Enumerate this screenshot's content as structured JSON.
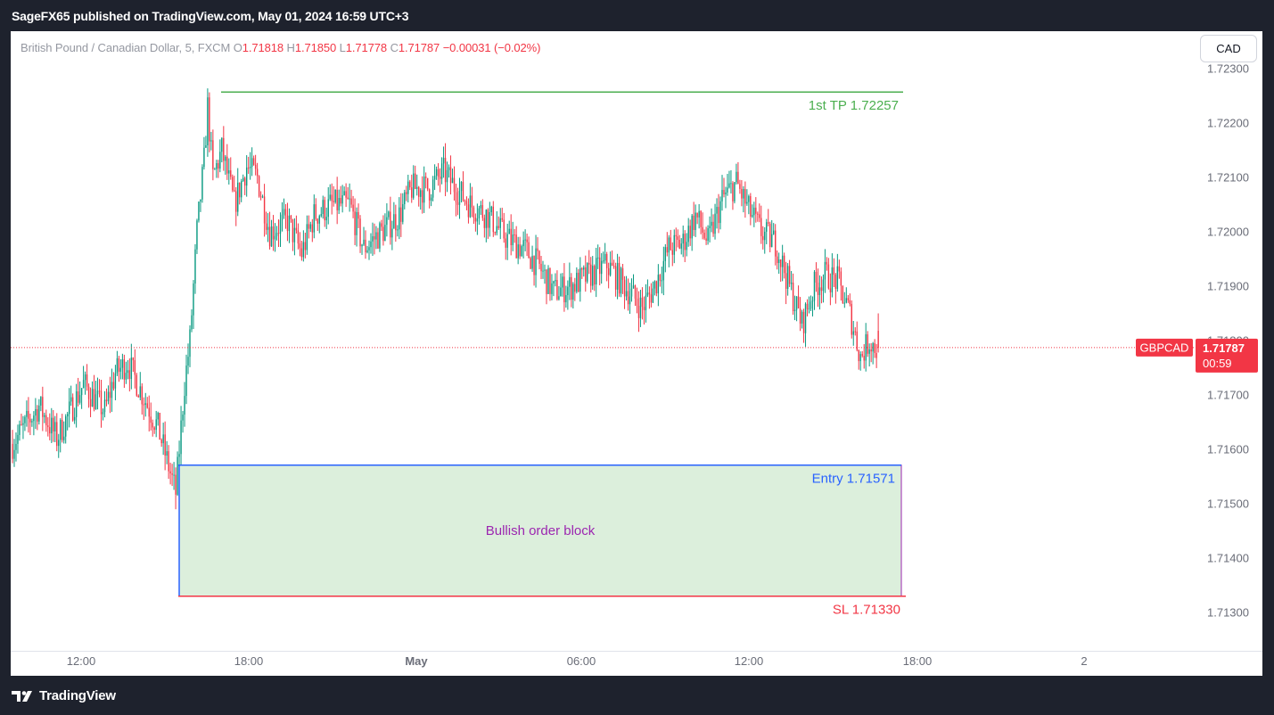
{
  "header": {
    "publisher": "SageFX65 published on TradingView.com, May 01, 2024 16:59 UTC+3"
  },
  "legend": {
    "symbol": "British Pound / Canadian Dollar, 5, FXCM",
    "o_label": "O",
    "o_value": "1.71818",
    "h_label": "H",
    "h_value": "1.71850",
    "l_label": "L",
    "l_value": "1.71778",
    "c_label": "C",
    "c_value": "1.71787",
    "change": "−0.00031 (−0.02%)"
  },
  "currency_button": "CAD",
  "footer": {
    "brand": "TradingView"
  },
  "colors": {
    "up": "#089981",
    "down": "#f23645",
    "tp": "#4caf50",
    "entry": "#2962ff",
    "sl": "#f23645",
    "zone_fill": "#dcefdc",
    "zone_border": "#9c27b0",
    "label_purple": "#9c27b0"
  },
  "chart_data": {
    "type": "candlestick",
    "symbol": "GBPCAD",
    "timeframe": "5",
    "y_range": [
      1.7125,
      1.7231
    ],
    "y_ticks": [
      1.723,
      1.722,
      1.721,
      1.72,
      1.719,
      1.718,
      1.717,
      1.716,
      1.715,
      1.714,
      1.713
    ],
    "y_tick_labels": [
      "1.72300",
      "1.72200",
      "1.72100",
      "1.72000",
      "1.71900",
      "1.71800",
      "1.71700",
      "1.71600",
      "1.71500",
      "1.71400",
      "1.71300"
    ],
    "x_ticks": [
      {
        "label": "12:00",
        "bold": false
      },
      {
        "label": "18:00",
        "bold": false
      },
      {
        "label": "May",
        "bold": true
      },
      {
        "label": "06:00",
        "bold": false
      },
      {
        "label": "12:00",
        "bold": false
      },
      {
        "label": "18:00",
        "bold": false
      },
      {
        "label": "2",
        "bold": false
      }
    ],
    "keypoints": [
      [
        0,
        1.7161
      ],
      [
        15,
        1.7168
      ],
      [
        25,
        1.7162
      ],
      [
        40,
        1.7172
      ],
      [
        52,
        1.7167
      ],
      [
        58,
        1.7174
      ],
      [
        65,
        1.7176
      ],
      [
        72,
        1.7171
      ],
      [
        82,
        1.7164
      ],
      [
        92,
        1.7152
      ],
      [
        97,
        1.7172
      ],
      [
        100,
        1.718
      ],
      [
        104,
        1.72
      ],
      [
        108,
        1.7213
      ],
      [
        110,
        1.7223
      ],
      [
        113,
        1.721
      ],
      [
        118,
        1.7215
      ],
      [
        125,
        1.7205
      ],
      [
        132,
        1.7212
      ],
      [
        138,
        1.721
      ],
      [
        145,
        1.72
      ],
      [
        155,
        1.7202
      ],
      [
        163,
        1.7196
      ],
      [
        170,
        1.7203
      ],
      [
        180,
        1.7205
      ],
      [
        190,
        1.7205
      ],
      [
        198,
        1.7197
      ],
      [
        208,
        1.72
      ],
      [
        218,
        1.7203
      ],
      [
        225,
        1.7208
      ],
      [
        235,
        1.7208
      ],
      [
        243,
        1.7211
      ],
      [
        250,
        1.7208
      ],
      [
        258,
        1.7205
      ],
      [
        268,
        1.7203
      ],
      [
        278,
        1.7199
      ],
      [
        288,
        1.7197
      ],
      [
        296,
        1.7194
      ],
      [
        305,
        1.7189
      ],
      [
        315,
        1.719
      ],
      [
        325,
        1.7192
      ],
      [
        335,
        1.7194
      ],
      [
        345,
        1.719
      ],
      [
        355,
        1.7186
      ],
      [
        362,
        1.719
      ],
      [
        370,
        1.7197
      ],
      [
        378,
        1.7198
      ],
      [
        385,
        1.7203
      ],
      [
        392,
        1.7198
      ],
      [
        400,
        1.7206
      ],
      [
        408,
        1.7209
      ],
      [
        415,
        1.7204
      ],
      [
        422,
        1.72
      ],
      [
        430,
        1.7198
      ],
      [
        437,
        1.7191
      ],
      [
        445,
        1.7183
      ],
      [
        452,
        1.719
      ],
      [
        458,
        1.7192
      ],
      [
        465,
        1.7191
      ],
      [
        472,
        1.7185
      ],
      [
        478,
        1.7177
      ],
      [
        483,
        1.718
      ],
      [
        488,
        1.7178
      ]
    ],
    "ohlc": {
      "open": 1.71818,
      "high": 1.7185,
      "low": 1.71778,
      "close": 1.71787
    },
    "last_price": 1.71787,
    "last_price_label": "1.71787",
    "countdown": "00:59",
    "symbol_badge": "GBPCAD",
    "levels": {
      "tp": {
        "value": 1.72257,
        "label": "1st TP 1.72257"
      },
      "entry": {
        "value": 1.71571,
        "label": "Entry  1.71571"
      },
      "sl": {
        "value": 1.7133,
        "label": "SL 1.71330"
      }
    },
    "zone": {
      "label": "Bullish order block",
      "top": 1.71571,
      "bottom": 1.7133
    }
  }
}
